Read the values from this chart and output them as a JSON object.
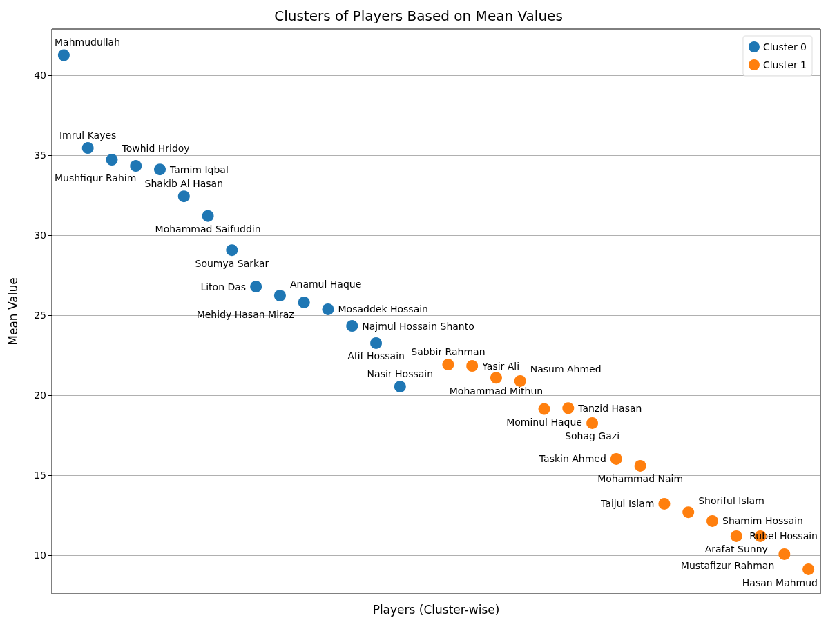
{
  "chart_data": {
    "type": "scatter",
    "title": "Clusters of Players Based on Mean Values",
    "xlabel": "Players (Cluster-wise)",
    "ylabel": "Mean Value",
    "categories": [
      null,
      null,
      null,
      null,
      null,
      null,
      null,
      null,
      null,
      null,
      null,
      null,
      null,
      null,
      null,
      null,
      null,
      null,
      null,
      null,
      null,
      null,
      null,
      null,
      null,
      null,
      null,
      null,
      null,
      null,
      null,
      null
    ],
    "series": [
      {
        "name": "Cluster 0",
        "color": "#1f77b4",
        "values": [
          41.26,
          35.46,
          34.73,
          34.34,
          34.12,
          32.44,
          31.21,
          29.08,
          26.8,
          26.24,
          25.81,
          25.38,
          24.34,
          23.27,
          20.55,
          null,
          null,
          null,
          null,
          null,
          null,
          null,
          null,
          null,
          null,
          null,
          null,
          null,
          null,
          null,
          null,
          null
        ],
        "value_labels": [
          "Mahmudullah",
          "Imrul Kayes",
          "Towhid Hridoy",
          "Mushfiqur Rahim",
          "Tamim Iqbal",
          "Shakib Al Hasan",
          "Mohammad Saifuddin",
          "Soumya Sarkar",
          "Liton Das",
          "Anamul Haque",
          "Mehidy Hasan Miraz",
          "Mosaddek Hossain",
          "Najmul Hossain Shanto",
          "Afif Hossain",
          "Nasir Hossain",
          null,
          null,
          null,
          null,
          null,
          null,
          null,
          null,
          null,
          null,
          null,
          null,
          null,
          null,
          null,
          null,
          null
        ]
      },
      {
        "name": "Cluster 1",
        "color": "#ff7f0e",
        "values": [
          null,
          null,
          null,
          null,
          null,
          null,
          null,
          null,
          null,
          null,
          null,
          null,
          null,
          null,
          null,
          null,
          21.93,
          21.84,
          21.1,
          20.9,
          19.15,
          19.2,
          18.27,
          16.03,
          15.6,
          13.23,
          12.7,
          12.15,
          11.2,
          11.2,
          10.08,
          9.13
        ],
        "value_labels": [
          null,
          null,
          null,
          null,
          null,
          null,
          null,
          null,
          null,
          null,
          null,
          null,
          null,
          null,
          null,
          null,
          "Sabbir Rahman",
          "Yasir Ali",
          "Mohammad Mithun",
          "Nasum Ahmed",
          "Mominul Haque",
          "Tanzid Hasan",
          "Sohag Gazi",
          "Taskin Ahmed",
          "Mohammad Naim",
          "Taijul Islam",
          "Shoriful Islam",
          "Shamim Hossain",
          "Arafat Sunny",
          "Rubel Hossain",
          "Mustafizur Rahman",
          "Hasan Mahmud"
        ]
      }
    ],
    "ylim": [
      7.6,
      42.9
    ],
    "yticks": [
      10,
      15,
      20,
      25,
      30,
      35,
      40
    ],
    "grid": "y",
    "legend": "top right",
    "marker": "circle"
  }
}
